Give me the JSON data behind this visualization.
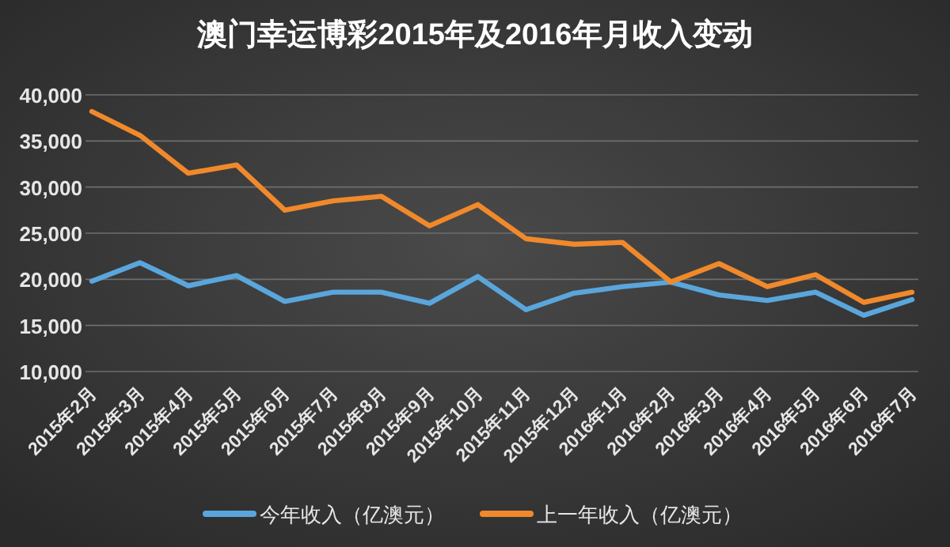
{
  "chart_data": {
    "type": "line",
    "title": "澳门幸运博彩2015年及2016年月收入变动",
    "categories": [
      "2015年2月",
      "2015年3月",
      "2015年4月",
      "2015年5月",
      "2015年6月",
      "2015年7月",
      "2015年8月",
      "2015年9月",
      "2015年10月",
      "2015年11月",
      "2015年12月",
      "2016年1月",
      "2016年2月",
      "2016年3月",
      "2016年4月",
      "2016年5月",
      "2016年6月",
      "2016年7月"
    ],
    "series": [
      {
        "name": "今年收入（亿澳元）",
        "color": "#5aa6dc",
        "values": [
          19800,
          21800,
          19300,
          20400,
          17600,
          18600,
          18600,
          17400,
          20300,
          16700,
          18500,
          19200,
          19700,
          18300,
          17700,
          18600,
          16100,
          17800
        ]
      },
      {
        "name": "上一年收入（亿澳元）",
        "color": "#f0892b",
        "values": [
          38200,
          35600,
          31500,
          32400,
          27500,
          28500,
          29000,
          25800,
          28100,
          24400,
          23800,
          24000,
          19700,
          21700,
          19200,
          20500,
          17500,
          18600
        ]
      }
    ],
    "ylim": [
      10000,
      40000
    ],
    "yticks": [
      {
        "value": 10000,
        "label": "10,000"
      },
      {
        "value": 15000,
        "label": "15,000"
      },
      {
        "value": 20000,
        "label": "20,000"
      },
      {
        "value": 25000,
        "label": "25,000"
      },
      {
        "value": 30000,
        "label": "30,000"
      },
      {
        "value": 35000,
        "label": "35,000"
      },
      {
        "value": 40000,
        "label": "40,000"
      }
    ],
    "grid": "y",
    "legend": "bottom",
    "marker": "none",
    "line_style": "solid"
  }
}
